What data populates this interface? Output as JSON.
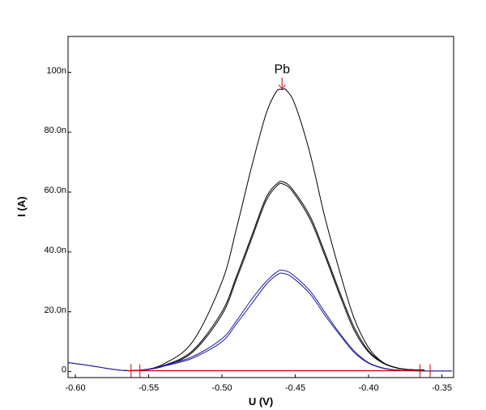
{
  "chart_data": {
    "type": "line",
    "title": "",
    "xlabel": "U (V)",
    "ylabel": "I (A)",
    "xlim": [
      -0.605,
      -0.342
    ],
    "ylim": [
      -2,
      112
    ],
    "x_ticks": [
      -0.6,
      -0.55,
      -0.5,
      -0.45,
      -0.4,
      -0.35
    ],
    "x_tick_labels": [
      "-0.60",
      "-0.55",
      "-0.50",
      "-0.45",
      "-0.40",
      "-0.35"
    ],
    "y_ticks": [
      0,
      20,
      40,
      60,
      80,
      100
    ],
    "y_tick_labels": [
      "0",
      "20.0n",
      "40.0n",
      "60.0n",
      "80.0n",
      "100n"
    ],
    "y_unit": "nA",
    "grid": false,
    "peak_annotation": {
      "label": "Pb",
      "x": -0.459,
      "y": 94.5,
      "color": "#cc0000"
    },
    "series": [
      {
        "color": "#000000",
        "width": 1,
        "points": [
          [
            -0.567,
            0.3
          ],
          [
            -0.555,
            0.5
          ],
          [
            -0.54,
            2.5
          ],
          [
            -0.52,
            10
          ],
          [
            -0.5,
            30
          ],
          [
            -0.49,
            48
          ],
          [
            -0.48,
            68
          ],
          [
            -0.47,
            86
          ],
          [
            -0.463,
            93.5
          ],
          [
            -0.459,
            94.3
          ],
          [
            -0.456,
            94
          ],
          [
            -0.45,
            89
          ],
          [
            -0.44,
            73
          ],
          [
            -0.43,
            52
          ],
          [
            -0.42,
            34
          ],
          [
            -0.41,
            18
          ],
          [
            -0.4,
            8
          ],
          [
            -0.39,
            3
          ],
          [
            -0.38,
            1.2
          ],
          [
            -0.37,
            0.6
          ],
          [
            -0.362,
            0.6
          ]
        ]
      },
      {
        "color": "#000000",
        "width": 1,
        "points": [
          [
            -0.567,
            0.3
          ],
          [
            -0.555,
            0.5
          ],
          [
            -0.54,
            2
          ],
          [
            -0.52,
            7
          ],
          [
            -0.5,
            20
          ],
          [
            -0.49,
            32
          ],
          [
            -0.48,
            45
          ],
          [
            -0.47,
            58
          ],
          [
            -0.462,
            63
          ],
          [
            -0.458,
            63.3
          ],
          [
            -0.452,
            61
          ],
          [
            -0.44,
            52
          ],
          [
            -0.43,
            40
          ],
          [
            -0.42,
            27
          ],
          [
            -0.41,
            15
          ],
          [
            -0.4,
            7
          ],
          [
            -0.39,
            3
          ],
          [
            -0.38,
            1.2
          ],
          [
            -0.37,
            0.6
          ],
          [
            -0.362,
            0.6
          ]
        ]
      },
      {
        "color": "#000000",
        "width": 1,
        "points": [
          [
            -0.567,
            0.3
          ],
          [
            -0.555,
            0.5
          ],
          [
            -0.54,
            1.8
          ],
          [
            -0.52,
            6.5
          ],
          [
            -0.5,
            19
          ],
          [
            -0.49,
            31
          ],
          [
            -0.48,
            44
          ],
          [
            -0.47,
            57
          ],
          [
            -0.462,
            62.3
          ],
          [
            -0.458,
            62.6
          ],
          [
            -0.452,
            60.3
          ],
          [
            -0.44,
            51
          ],
          [
            -0.43,
            39
          ],
          [
            -0.42,
            26
          ],
          [
            -0.41,
            14
          ],
          [
            -0.4,
            6.5
          ],
          [
            -0.39,
            2.8
          ],
          [
            -0.38,
            1.1
          ],
          [
            -0.37,
            0.6
          ],
          [
            -0.362,
            0.6
          ]
        ]
      },
      {
        "color": "#1a1aa0",
        "width": 1,
        "points": [
          [
            -0.605,
            3
          ],
          [
            -0.59,
            2
          ],
          [
            -0.58,
            1.2
          ],
          [
            -0.57,
            0.5
          ],
          [
            -0.56,
            0.3
          ],
          [
            -0.55,
            0.8
          ],
          [
            -0.54,
            2
          ],
          [
            -0.52,
            5
          ],
          [
            -0.5,
            11
          ],
          [
            -0.49,
            17
          ],
          [
            -0.48,
            24
          ],
          [
            -0.47,
            30
          ],
          [
            -0.462,
            33.5
          ],
          [
            -0.458,
            33.8
          ],
          [
            -0.452,
            32.5
          ],
          [
            -0.44,
            27
          ],
          [
            -0.43,
            20
          ],
          [
            -0.42,
            13
          ],
          [
            -0.41,
            7
          ],
          [
            -0.4,
            3
          ],
          [
            -0.39,
            1.2
          ],
          [
            -0.38,
            0.5
          ],
          [
            -0.37,
            0.3
          ],
          [
            -0.36,
            0.2
          ],
          [
            -0.343,
            0.2
          ]
        ]
      },
      {
        "color": "#1a1aa0",
        "width": 1,
        "points": [
          [
            -0.605,
            3
          ],
          [
            -0.59,
            2
          ],
          [
            -0.58,
            1.2
          ],
          [
            -0.57,
            0.5
          ],
          [
            -0.56,
            0.3
          ],
          [
            -0.55,
            0.8
          ],
          [
            -0.54,
            1.8
          ],
          [
            -0.52,
            4.5
          ],
          [
            -0.5,
            10
          ],
          [
            -0.49,
            16
          ],
          [
            -0.48,
            22.5
          ],
          [
            -0.47,
            29
          ],
          [
            -0.462,
            32.5
          ],
          [
            -0.458,
            32.8
          ],
          [
            -0.452,
            31.5
          ],
          [
            -0.44,
            26
          ],
          [
            -0.43,
            19
          ],
          [
            -0.42,
            12.5
          ],
          [
            -0.41,
            6.5
          ],
          [
            -0.4,
            2.8
          ],
          [
            -0.39,
            1.1
          ],
          [
            -0.38,
            0.5
          ],
          [
            -0.37,
            0.3
          ],
          [
            -0.36,
            0.2
          ],
          [
            -0.343,
            0.2
          ]
        ]
      }
    ],
    "baseline": {
      "color": "#cc0000",
      "x": [
        -0.565,
        -0.362
      ],
      "y": 0.3
    },
    "baseline_markers_x": [
      -0.562,
      -0.556,
      -0.365,
      -0.358
    ],
    "baseline_markers_color": "#cc0000"
  }
}
